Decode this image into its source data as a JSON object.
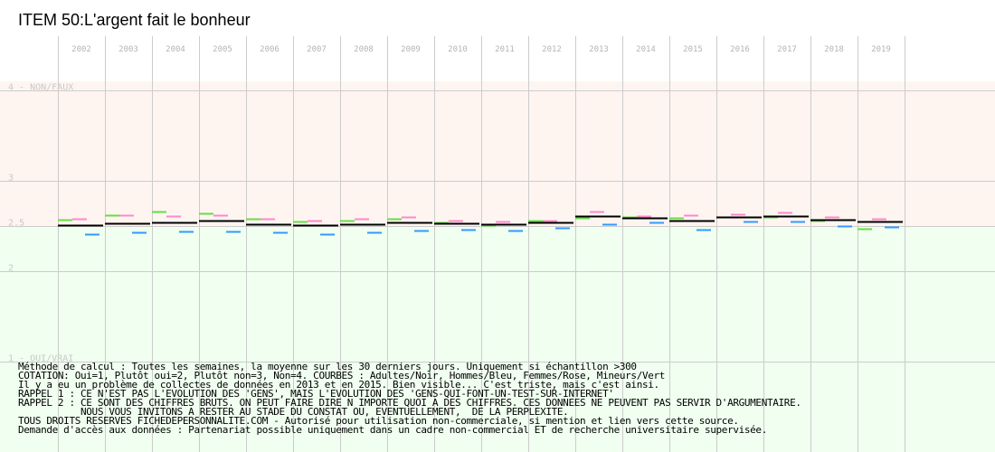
{
  "chart_data": {
    "type": "line",
    "title": "ITEM 50:L'argent fait le bonheur",
    "categories": [
      "2002",
      "2003",
      "2004",
      "2005",
      "2006",
      "2007",
      "2008",
      "2009",
      "2010",
      "2011",
      "2012",
      "2013",
      "2014",
      "2015",
      "2016",
      "2017",
      "2018",
      "2019"
    ],
    "y_ticks": [
      {
        "value": 4,
        "label": "4 - NON/FAUX"
      },
      {
        "value": 3,
        "label": "3"
      },
      {
        "value": 2.5,
        "label": "2.5"
      },
      {
        "value": 2,
        "label": "2"
      },
      {
        "value": 1,
        "label": "1 - OUI/VRAI"
      }
    ],
    "ylim": [
      0.98,
      4.1
    ],
    "grid": true,
    "series": [
      {
        "name": "Adultes",
        "color": "#000000",
        "values": [
          2.51,
          2.53,
          2.54,
          2.56,
          2.52,
          2.51,
          2.52,
          2.54,
          2.53,
          2.52,
          2.54,
          2.61,
          2.59,
          2.56,
          2.6,
          2.61,
          2.57,
          2.55
        ]
      },
      {
        "name": "Hommes",
        "color": "#3399ff",
        "values": [
          2.41,
          2.43,
          2.44,
          2.44,
          2.43,
          2.41,
          2.43,
          2.45,
          2.46,
          2.45,
          2.48,
          2.52,
          2.54,
          2.46,
          2.55,
          2.55,
          2.5,
          2.49
        ]
      },
      {
        "name": "Femmes",
        "color": "#ff88cc",
        "values": [
          2.58,
          2.62,
          2.61,
          2.62,
          2.58,
          2.56,
          2.58,
          2.6,
          2.56,
          2.55,
          2.56,
          2.66,
          2.61,
          2.62,
          2.63,
          2.65,
          2.6,
          2.58
        ]
      },
      {
        "name": "Mineurs",
        "color": "#66dd44",
        "values": [
          2.57,
          2.62,
          2.66,
          2.64,
          2.58,
          2.55,
          2.56,
          2.58,
          2.54,
          2.51,
          2.56,
          2.59,
          2.6,
          2.59,
          2.6,
          2.6,
          2.56,
          2.47
        ]
      }
    ],
    "zone_colors": {
      "non": "#fff5f0",
      "oui": "#f0fff0",
      "grid": "#cccccc"
    }
  },
  "notes": [
    "Méthode de calcul : Toutes les semaines, la moyenne sur les 30 derniers jours. Uniquement si échantillon >300",
    "COTATION: Oui=1, Plutôt oui=2, Plutôt non=3, Non=4. COURBES : Adultes/Noir, Hommes/Bleu, Femmes/Rose, Mineurs/Vert",
    "Il y a eu un problème de collectes de données en 2013 et en 2015. Bien visible... C'est triste, mais c'est ainsi.",
    "RAPPEL 1 : CE N'EST PAS L'EVOLUTION DES 'GENS', MAIS L'EVOLUTION DES 'GENS-QUI-FONT-UN-TEST-SUR-INTERNET'",
    "RAPPEL 2 : CE SONT DES CHIFFRES BRUTS. ON PEUT FAIRE DIRE N IMPORTE QUOI A DES CHIFFRES. CES DONNEES NE PEUVENT PAS SERVIR D'ARGUMENTAIRE.",
    "           NOUS VOUS INVITONS A RESTER AU STADE DU CONSTAT OU, EVENTUELLEMENT,  DE LA PERPLEXITE.",
    "TOUS DROITS RESERVES FICHEDEPERSONNALITE.COM - Autorisé pour utilisation non-commerciale, si mention et lien vers cette source.",
    "Demande d'accès aux données : Partenariat possible uniquement dans un cadre non-commercial ET de recherche universitaire supervisée."
  ]
}
